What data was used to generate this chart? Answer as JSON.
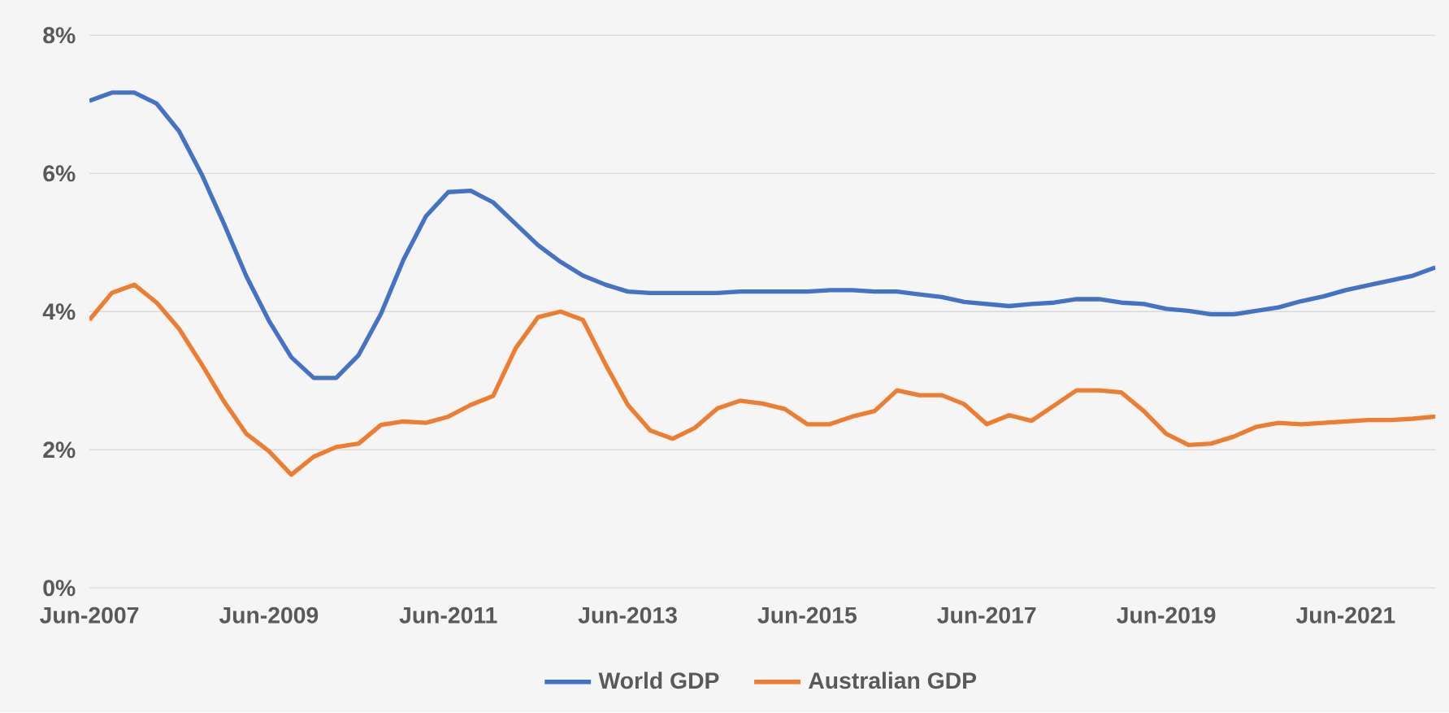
{
  "chart_data": {
    "type": "line",
    "categories": [
      "Jun-2007",
      null,
      null,
      null,
      null,
      null,
      null,
      null,
      "Jun-2009",
      null,
      null,
      null,
      null,
      null,
      null,
      null,
      "Jun-2011",
      null,
      null,
      null,
      null,
      null,
      null,
      null,
      "Jun-2013",
      null,
      null,
      null,
      null,
      null,
      null,
      null,
      "Jun-2015",
      null,
      null,
      null,
      null,
      null,
      null,
      null,
      "Jun-2017",
      null,
      null,
      null,
      null,
      null,
      null,
      null,
      "Jun-2019",
      null,
      null,
      null,
      null,
      null,
      null,
      null,
      "Jun-2021",
      null,
      null,
      null,
      null
    ],
    "series": [
      {
        "name": "World GDP",
        "color": "#4472c4",
        "values": [
          7.05,
          7.17,
          7.17,
          7.01,
          6.61,
          5.99,
          5.27,
          4.51,
          3.87,
          3.34,
          3.04,
          3.04,
          3.37,
          3.97,
          4.75,
          5.38,
          5.73,
          5.75,
          5.58,
          5.27,
          4.96,
          4.72,
          4.52,
          4.39,
          4.29,
          4.27,
          4.27,
          4.27,
          4.27,
          4.29,
          4.29,
          4.29,
          4.29,
          4.31,
          4.31,
          4.29,
          4.29,
          4.25,
          4.21,
          4.14,
          4.11,
          4.08,
          4.11,
          4.13,
          4.18,
          4.18,
          4.13,
          4.11,
          4.04,
          4.01,
          3.96,
          3.96,
          4.01,
          4.06,
          4.15,
          4.22,
          4.31,
          4.38,
          4.45,
          4.52,
          4.64
        ]
      },
      {
        "name": "Australian GDP",
        "color": "#ed7d31",
        "values": [
          3.88,
          4.27,
          4.39,
          4.13,
          3.75,
          3.24,
          2.7,
          2.23,
          1.98,
          1.64,
          1.9,
          2.04,
          2.09,
          2.36,
          2.41,
          2.39,
          2.48,
          2.65,
          2.78,
          3.47,
          3.92,
          4.0,
          3.88,
          3.24,
          2.65,
          2.28,
          2.16,
          2.32,
          2.6,
          2.71,
          2.67,
          2.59,
          2.37,
          2.37,
          2.48,
          2.56,
          2.86,
          2.79,
          2.79,
          2.66,
          2.37,
          2.5,
          2.42,
          2.64,
          2.86,
          2.86,
          2.83,
          2.56,
          2.23,
          2.07,
          2.09,
          2.19,
          2.33,
          2.39,
          2.37,
          2.39,
          2.41,
          2.43,
          2.43,
          2.45,
          2.48
        ]
      }
    ],
    "ylim": [
      0,
      8
    ],
    "yticks": [
      {
        "value": 0,
        "label": "0%"
      },
      {
        "value": 2,
        "label": "2%"
      },
      {
        "value": 4,
        "label": "4%"
      },
      {
        "value": 6,
        "label": "6%"
      },
      {
        "value": 8,
        "label": "8%"
      }
    ],
    "grid": "y",
    "legend": "bottom",
    "marker": "none",
    "line_style": "solid"
  }
}
